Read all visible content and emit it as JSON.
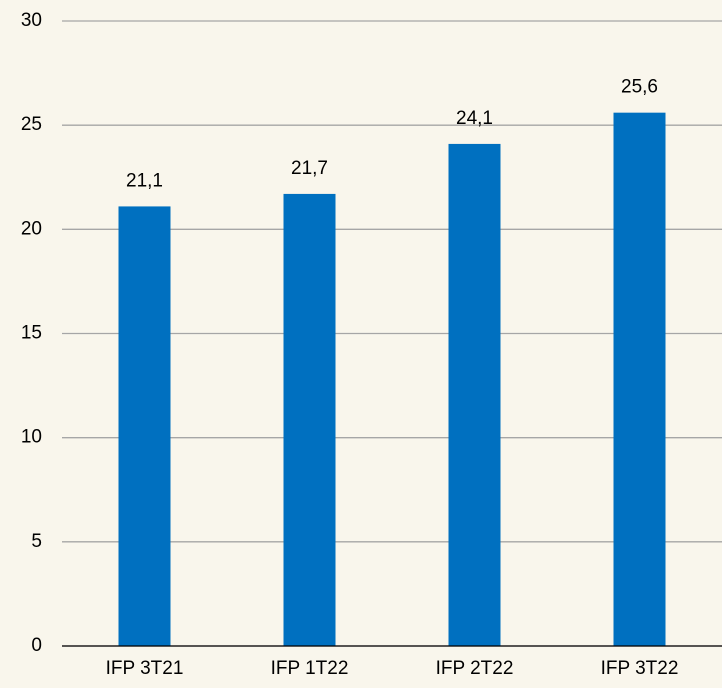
{
  "chart_data": {
    "type": "bar",
    "categories": [
      "IFP 3T21",
      "IFP 1T22",
      "IFP 2T22",
      "IFP 3T22"
    ],
    "values": [
      21.1,
      21.7,
      24.1,
      25.6
    ],
    "value_labels": [
      "21,1",
      "21,7",
      "24,1",
      "25,6"
    ],
    "color": "#0070c0",
    "ylim": [
      0,
      30
    ],
    "yticks": [
      0,
      5,
      10,
      15,
      20,
      25,
      30
    ],
    "grid": true
  }
}
